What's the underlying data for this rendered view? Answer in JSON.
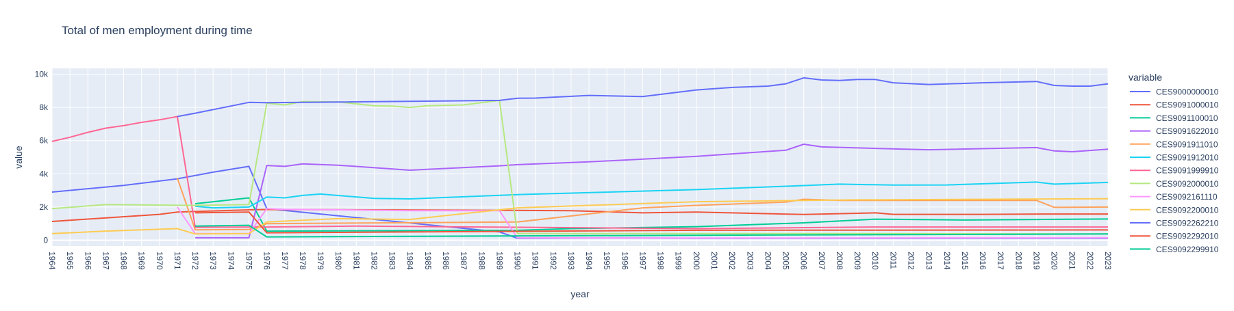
{
  "chart_data": {
    "type": "line",
    "title": "Total of men employment during time",
    "xlabel": "year",
    "ylabel": "value",
    "xlim": [
      1964,
      2023
    ],
    "ylim": [
      -350,
      10350
    ],
    "x_ticks": [
      1964,
      1965,
      1966,
      1967,
      1968,
      1969,
      1970,
      1971,
      1972,
      1973,
      1974,
      1975,
      1976,
      1977,
      1978,
      1979,
      1980,
      1981,
      1982,
      1983,
      1984,
      1985,
      1986,
      1987,
      1988,
      1989,
      1990,
      1991,
      1992,
      1993,
      1994,
      1995,
      1996,
      1997,
      1998,
      1999,
      2000,
      2001,
      2002,
      2003,
      2004,
      2005,
      2006,
      2007,
      2008,
      2009,
      2010,
      2011,
      2012,
      2013,
      2014,
      2015,
      2016,
      2017,
      2018,
      2019,
      2020,
      2021,
      2022,
      2023
    ],
    "y_ticks": [
      {
        "value": 0,
        "label": "0"
      },
      {
        "value": 2000,
        "label": "2k"
      },
      {
        "value": 4000,
        "label": "4k"
      },
      {
        "value": 6000,
        "label": "6k"
      },
      {
        "value": 8000,
        "label": "8k"
      },
      {
        "value": 10000,
        "label": "10k"
      }
    ],
    "grid": true,
    "legend_title": "variable",
    "legend_position": "right",
    "series": [
      {
        "name": "CES9000000010",
        "color": "#636efa",
        "x": [
          1964,
          1968,
          1971,
          1973,
          1975,
          1976,
          1989,
          1990,
          1994,
          1997,
          2000,
          2006,
          2007,
          2008,
          2010,
          2011,
          2013,
          2016,
          2019,
          2020,
          2023
        ],
        "y": [
          2900,
          3300,
          3700,
          4100,
          4450,
          1900,
          500,
          120,
          130,
          130,
          120,
          120,
          120,
          120,
          120,
          120,
          120,
          120,
          120,
          120,
          120
        ]
      },
      {
        "name": "CES9091000010",
        "color": "#ef553b",
        "x": [
          1964,
          1970,
          1971,
          1975,
          1976,
          1990,
          1993,
          1997,
          2000,
          2006,
          2010,
          2011,
          2016,
          2020,
          2023
        ],
        "y": [
          1130,
          1560,
          1700,
          1830,
          1850,
          1800,
          1780,
          1650,
          1700,
          1550,
          1650,
          1560,
          1560,
          1580,
          1580
        ]
      },
      {
        "name": "CES9091100010",
        "color": "#00cc96",
        "x": [
          1972,
          1975,
          1976,
          1990,
          1993,
          2000,
          2006,
          2010,
          2015,
          2019,
          2023
        ],
        "y": [
          2200,
          2550,
          550,
          600,
          700,
          820,
          1050,
          1270,
          1220,
          1250,
          1280
        ]
      },
      {
        "name": "CES9091622010",
        "color": "#ab63fa",
        "x": [
          1972,
          1975,
          1976,
          1977,
          1978,
          1980,
          1984,
          1989,
          1990,
          1994,
          2000,
          2005,
          2006,
          2007,
          2010,
          2013,
          2019,
          2020,
          2021,
          2023
        ],
        "y": [
          150,
          150,
          4500,
          4450,
          4600,
          4520,
          4220,
          4480,
          4550,
          4720,
          5050,
          5420,
          5780,
          5620,
          5530,
          5450,
          5580,
          5380,
          5330,
          5480
        ]
      },
      {
        "name": "CES9091911010",
        "color": "#ffa15a",
        "x": [
          1971,
          1972,
          1975,
          1976,
          1990,
          1997,
          2000,
          2005,
          2006,
          2008,
          2019,
          2020,
          2023
        ],
        "y": [
          3750,
          630,
          650,
          1000,
          1100,
          1950,
          2100,
          2300,
          2470,
          2400,
          2400,
          1980,
          2000
        ]
      },
      {
        "name": "CES9091912010",
        "color": "#19d3f3",
        "x": [
          1972,
          1973,
          1975,
          1976,
          1977,
          1978,
          1979,
          1982,
          1984,
          1990,
          2000,
          2005,
          2008,
          2011,
          2014,
          2019,
          2020,
          2023
        ],
        "y": [
          2050,
          1950,
          2000,
          2600,
          2550,
          2700,
          2780,
          2520,
          2490,
          2750,
          3050,
          3250,
          3380,
          3320,
          3330,
          3500,
          3380,
          3480
        ]
      },
      {
        "name": "CES9091999910",
        "color": "#ff6692",
        "x": [
          1964,
          1965,
          1966,
          1967,
          1968,
          1969,
          1970,
          1971,
          1972,
          1976,
          1981,
          1990,
          2000,
          2010,
          2023
        ],
        "y": [
          5950,
          6200,
          6500,
          6750,
          6900,
          7100,
          7250,
          7450,
          780,
          800,
          850,
          780,
          700,
          800,
          800
        ]
      },
      {
        "name": "CES9092000010",
        "color": "#b6e880",
        "x": [
          1964,
          1967,
          1972,
          1975,
          1976,
          1977,
          1978,
          1980,
          1982,
          1983,
          1984,
          1985,
          1987,
          1989,
          1990,
          2000,
          2010,
          2023
        ],
        "y": [
          1900,
          2150,
          2100,
          2150,
          8250,
          8150,
          8350,
          8330,
          8100,
          8080,
          8000,
          8100,
          8150,
          8420,
          400,
          400,
          400,
          380
        ]
      },
      {
        "name": "CES9092161110",
        "color": "#ff97ff",
        "x": [
          1971,
          1972,
          1975,
          1976,
          1977,
          1980,
          1984,
          1989,
          1990,
          2000,
          2023
        ],
        "y": [
          2000,
          400,
          400,
          1900,
          1860,
          1830,
          1780,
          1780,
          150,
          130,
          150
        ]
      },
      {
        "name": "CES9092200010",
        "color": "#fecb52",
        "x": [
          1964,
          1967,
          1971,
          1972,
          1975,
          1976,
          1978,
          1980,
          1984,
          1990,
          1994,
          2000,
          2009,
          2023
        ],
        "y": [
          400,
          550,
          700,
          380,
          400,
          1100,
          1200,
          1300,
          1250,
          1950,
          2100,
          2320,
          2430,
          2500
        ]
      },
      {
        "name": "CES9092262210",
        "color": "#636efa",
        "x": [
          1971,
          1972,
          1975,
          1976,
          1989,
          1990,
          1991,
          1994,
          1997,
          2000,
          2002,
          2004,
          2005,
          2006,
          2007,
          2008,
          2009,
          2010,
          2011,
          2013,
          2016,
          2019,
          2020,
          2021,
          2022,
          2023
        ],
        "y": [
          7450,
          7650,
          8300,
          8280,
          8420,
          8550,
          8560,
          8720,
          8650,
          9050,
          9200,
          9280,
          9420,
          9780,
          9650,
          9620,
          9680,
          9680,
          9480,
          9380,
          9480,
          9560,
          9320,
          9280,
          9280,
          9420
        ]
      },
      {
        "name": "CES9092292010",
        "color": "#ef553b",
        "x": [
          1972,
          1975,
          1976,
          2000,
          2023
        ],
        "y": [
          1650,
          1700,
          450,
          600,
          620
        ]
      },
      {
        "name": "CES9092299910",
        "color": "#00cc96",
        "x": [
          1972,
          1975,
          1976,
          2000,
          2023
        ],
        "y": [
          850,
          900,
          200,
          300,
          380
        ]
      }
    ]
  }
}
